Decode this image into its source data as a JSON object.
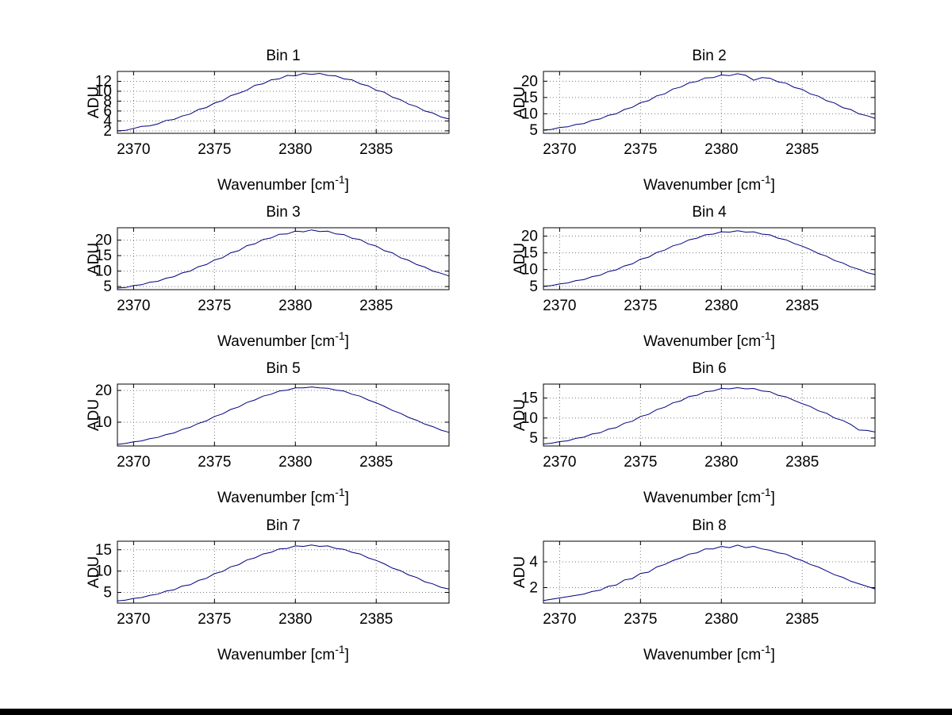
{
  "page": {
    "background": "#ffffff",
    "bottom_strip_color": "#000000"
  },
  "chart_data": {
    "type": "line",
    "layout_hint": {
      "rows": 4,
      "cols": 2,
      "grid": "dotted",
      "legend": "none"
    },
    "line_color": "#000080",
    "x_axis": {
      "label": "Wavenumber [cm⁻¹]",
      "label_parts": {
        "main": "Wavenumber [cm",
        "sup": "-1",
        "close": "]"
      },
      "lim": [
        2369,
        2389.5
      ],
      "ticks": [
        2370,
        2375,
        2380,
        2385
      ]
    },
    "y_axis": {
      "label": "ADU"
    },
    "x": [
      2369,
      2369.5,
      2370,
      2370.5,
      2371,
      2371.5,
      2372,
      2372.5,
      2373,
      2373.5,
      2374,
      2374.5,
      2375,
      2375.5,
      2376,
      2376.5,
      2377,
      2377.5,
      2378,
      2378.5,
      2379,
      2379.5,
      2380,
      2380.5,
      2381,
      2381.5,
      2382,
      2382.5,
      2383,
      2383.5,
      2384,
      2384.5,
      2385,
      2385.5,
      2386,
      2386.5,
      2387,
      2387.5,
      2388,
      2388.5,
      2389,
      2389.5
    ],
    "subplots": [
      {
        "title": "Bin 1",
        "ylim": [
          1.5,
          14
        ],
        "yticks": [
          2,
          4,
          6,
          8,
          10,
          12
        ],
        "y": [
          2.0,
          2.1,
          2.5,
          2.9,
          3.0,
          3.4,
          4.1,
          4.3,
          5.0,
          5.4,
          6.3,
          6.7,
          7.6,
          8.1,
          9.1,
          9.6,
          10.2,
          11.2,
          11.5,
          12.3,
          12.5,
          13.2,
          13.1,
          13.6,
          13.4,
          13.6,
          13.2,
          13.1,
          12.5,
          12.3,
          11.5,
          11.1,
          10.2,
          9.8,
          8.8,
          8.3,
          7.4,
          6.9,
          6.0,
          5.6,
          4.8,
          4.4
        ]
      },
      {
        "title": "Bin 2",
        "ylim": [
          4,
          23
        ],
        "yticks": [
          5,
          10,
          15,
          20
        ],
        "y": [
          5.0,
          5.2,
          5.8,
          6.0,
          6.7,
          7.0,
          8.0,
          8.4,
          9.5,
          10.0,
          11.3,
          12.0,
          13.4,
          14.0,
          15.5,
          16.1,
          17.6,
          18.2,
          19.5,
          19.9,
          21.0,
          21.1,
          21.9,
          21.7,
          22.3,
          21.8,
          20.3,
          21.1,
          20.9,
          19.8,
          19.4,
          18.1,
          17.5,
          16.1,
          15.4,
          14.0,
          13.3,
          11.9,
          11.3,
          10.0,
          9.4,
          8.6
        ]
      },
      {
        "title": "Bin 3",
        "ylim": [
          4,
          24
        ],
        "yticks": [
          5,
          10,
          15,
          20
        ],
        "y": [
          4.5,
          4.7,
          5.3,
          5.6,
          6.4,
          6.7,
          7.7,
          8.2,
          9.4,
          10.0,
          11.4,
          12.1,
          13.6,
          14.3,
          15.9,
          16.6,
          18.2,
          18.8,
          20.2,
          20.7,
          21.9,
          22.0,
          22.9,
          22.7,
          23.3,
          22.8,
          22.9,
          22.0,
          21.8,
          20.6,
          20.2,
          18.8,
          18.1,
          16.6,
          15.9,
          14.3,
          13.5,
          12.1,
          11.3,
          10.0,
          9.3,
          8.4
        ]
      },
      {
        "title": "Bin 4",
        "ylim": [
          4,
          22.5
        ],
        "yticks": [
          5,
          10,
          15,
          20
        ],
        "y": [
          5.0,
          5.2,
          5.7,
          6.0,
          6.7,
          7.0,
          7.9,
          8.3,
          9.4,
          9.9,
          11.1,
          11.7,
          13.1,
          13.7,
          15.1,
          15.8,
          17.1,
          17.7,
          18.9,
          19.4,
          20.4,
          20.6,
          21.3,
          21.2,
          21.6,
          21.2,
          21.3,
          20.6,
          20.4,
          19.4,
          18.9,
          17.8,
          17.0,
          16.0,
          14.8,
          14.0,
          12.7,
          12.0,
          10.8,
          10.1,
          9.1,
          8.5
        ]
      },
      {
        "title": "Bin 5",
        "ylim": [
          2.5,
          22
        ],
        "yticks": [
          10,
          20
        ],
        "y": [
          3.0,
          3.3,
          3.8,
          4.1,
          4.8,
          5.2,
          6.1,
          6.6,
          7.7,
          8.4,
          9.6,
          10.4,
          11.8,
          12.6,
          14.0,
          14.8,
          16.2,
          17.0,
          18.2,
          18.8,
          19.8,
          20.1,
          20.8,
          20.8,
          21.1,
          20.8,
          20.7,
          20.1,
          19.8,
          18.8,
          18.2,
          17.0,
          16.1,
          15.0,
          13.7,
          12.8,
          11.5,
          10.6,
          9.4,
          8.6,
          7.5,
          6.8
        ]
      },
      {
        "title": "Bin 6",
        "ylim": [
          3,
          18.5
        ],
        "yticks": [
          5,
          10,
          15
        ],
        "y": [
          3.5,
          3.7,
          4.1,
          4.3,
          4.9,
          5.2,
          6.0,
          6.3,
          7.2,
          7.6,
          8.7,
          9.2,
          10.4,
          10.9,
          12.1,
          12.7,
          13.8,
          14.3,
          15.4,
          15.7,
          16.6,
          16.8,
          17.4,
          17.3,
          17.6,
          17.3,
          17.4,
          16.8,
          16.6,
          15.7,
          15.3,
          14.4,
          13.6,
          12.9,
          11.8,
          11.2,
          10.0,
          9.4,
          8.4,
          7.0,
          6.9,
          6.5
        ]
      },
      {
        "title": "Bin 7",
        "ylim": [
          2.5,
          17
        ],
        "yticks": [
          5,
          10,
          15
        ],
        "y": [
          3.0,
          3.2,
          3.6,
          3.8,
          4.3,
          4.6,
          5.3,
          5.6,
          6.5,
          6.8,
          7.8,
          8.3,
          9.4,
          9.9,
          11.0,
          11.5,
          12.6,
          13.1,
          14.0,
          14.4,
          15.2,
          15.3,
          15.9,
          15.8,
          16.1,
          15.8,
          15.9,
          15.3,
          15.1,
          14.4,
          14.0,
          13.1,
          12.5,
          11.7,
          10.7,
          10.1,
          9.1,
          8.5,
          7.5,
          7.0,
          6.2,
          5.8
        ]
      },
      {
        "title": "Bin 8",
        "ylim": [
          0.8,
          5.6
        ],
        "yticks": [
          2,
          4
        ],
        "y": [
          1.0,
          1.1,
          1.2,
          1.3,
          1.4,
          1.5,
          1.7,
          1.8,
          2.1,
          2.2,
          2.6,
          2.7,
          3.1,
          3.2,
          3.6,
          3.8,
          4.1,
          4.3,
          4.6,
          4.7,
          5.0,
          5.0,
          5.2,
          5.1,
          5.3,
          5.1,
          5.2,
          5.0,
          4.9,
          4.7,
          4.6,
          4.3,
          4.1,
          3.8,
          3.6,
          3.3,
          3.0,
          2.8,
          2.5,
          2.3,
          2.1,
          1.9
        ]
      }
    ]
  }
}
